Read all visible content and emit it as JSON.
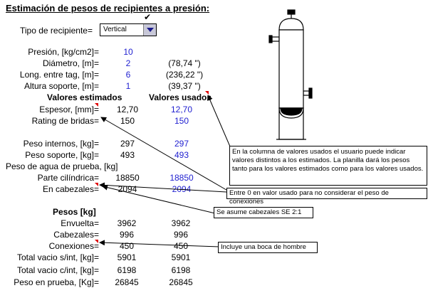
{
  "title": "Estimación de pesos de recipientes a presión:",
  "vessel_type": {
    "label": "Tipo de recipiente=",
    "selected": "Vertical",
    "check_mark": "✔"
  },
  "inputs": [
    {
      "label": "Presión, [kg/cm2]=",
      "value": "10",
      "extra": ""
    },
    {
      "label": "Diámetro, [m]=",
      "value": "2",
      "extra": "(78,74 \")"
    },
    {
      "label": "Long. entre tag, [m]=",
      "value": "6",
      "extra": "(236,22 \")"
    },
    {
      "label": "Altura soporte, [m]=",
      "value": "1",
      "extra": "(39,37 \")"
    }
  ],
  "headers": {
    "estimated": "Valores estimados",
    "used": "Valores usados"
  },
  "rows1": [
    {
      "label": "Espesor, [mm]=",
      "est": "12,70",
      "used": "12,70"
    },
    {
      "label": "Rating de bridas=",
      "est": "150",
      "used": "150"
    }
  ],
  "rows2": [
    {
      "label": "Peso internos, [kg]=",
      "est": "297",
      "used": "297"
    },
    {
      "label": "Peso soporte, [kg]=",
      "est": "493",
      "used": "493"
    }
  ],
  "water_test_label": "Peso de agua de prueba, [kg]",
  "rows3": [
    {
      "label": "Parte cilíndrica=",
      "est": "18850",
      "used": "18850"
    },
    {
      "label": "En cabezales=",
      "est": "2094",
      "used": "2094"
    }
  ],
  "weights": {
    "header": "Pesos [kg]",
    "rows": [
      {
        "label": "Envuelta=",
        "a": "3962",
        "b": "3962"
      },
      {
        "label": "Cabezales=",
        "a": "996",
        "b": "996"
      },
      {
        "label": "Conexiones=",
        "a": "450",
        "b": "450"
      },
      {
        "label": "Total vacio s/int, [kg]=",
        "a": "5901",
        "b": "5901"
      },
      {
        "label": "Total vacio c/int, [kg]=",
        "a": "6198",
        "b": "6198"
      },
      {
        "label": "Peso en prueba, [Kg]=",
        "a": "26845",
        "b": "26845"
      }
    ]
  },
  "notes": {
    "used_values": "En la columna de valores usados el usuario puede indicar valores distintos a los estimados. La planilla dará los pesos tanto para los valores estimados como para los valores usados.",
    "zero": "Entre 0 en valor usado para no considerar el peso de conexiones",
    "heads": "Se asume cabezales SE 2:1",
    "manhole": "Incluye una boca de hombre"
  },
  "colors": {
    "blue_values": "#1f1fd0",
    "comment_marker": "#e00000"
  }
}
